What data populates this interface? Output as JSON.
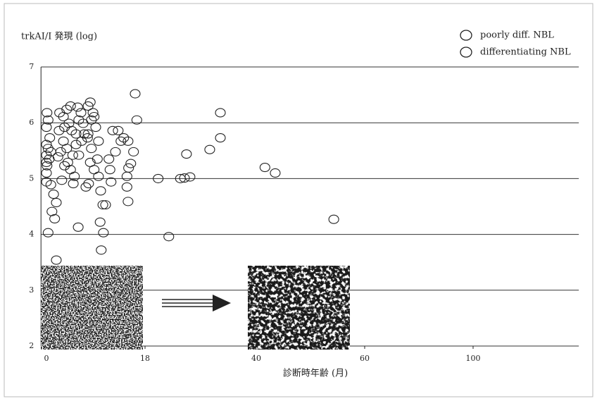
{
  "chart_data": {
    "type": "scatter",
    "y_label": "trkAI/I 発現 (log)",
    "x_label": "診断時年齢 (月)",
    "xlim": [
      -1,
      139
    ],
    "xticks": [
      0,
      18,
      40,
      60,
      100
    ],
    "ylim": [
      2,
      7
    ],
    "yticks": [
      2,
      3,
      4,
      5,
      6,
      7
    ],
    "grid": true,
    "legend": "top-right",
    "series": [
      {
        "name": "poorly  diff. NBL",
        "color": "#222",
        "x": [
          0.1,
          0.3,
          0,
          0.6,
          0,
          0.3,
          0.8,
          0,
          0.5,
          0,
          0.1,
          0,
          0,
          0.8,
          1.3,
          1.0,
          1.5,
          0.3,
          1.8,
          1.8,
          2.1,
          2.6,
          2.3,
          2.4,
          3.1,
          3.3,
          3.1,
          3.7,
          4.4,
          4.1,
          4.6,
          3.7,
          3.3,
          2.8,
          3.9,
          4.4,
          4.9,
          5.1,
          5.4,
          5.7,
          5.9,
          5.4,
          4.8,
          6.3,
          6.7,
          6.9,
          6.4,
          5.9,
          7.6,
          8.0,
          8.2,
          8.5,
          7.6,
          8.2,
          8.0,
          7.7,
          7.2,
          5.8,
          8.7,
          9.0,
          9.5,
          9.3,
          8.7,
          9.5,
          7.5,
          9.9,
          10.3,
          10.8,
          9.8,
          10.0,
          10.4,
          11.4,
          11.6,
          11.8,
          12.1,
          12.6,
          13.1,
          13.6,
          14.1,
          14.7,
          14.7,
          14.9,
          15.0,
          15.4,
          14.9,
          15.9,
          16.2,
          16.5,
          20.6,
          22.7,
          25.0,
          25.8,
          26.2,
          26.9,
          30.8,
          32.9,
          32.9,
          41.6,
          43.5,
          54.3
        ],
        "values": [
          6.18,
          6.05,
          5.92,
          5.73,
          5.61,
          5.54,
          5.48,
          5.42,
          5.35,
          5.29,
          5.23,
          5.1,
          4.94,
          4.89,
          4.72,
          4.41,
          4.28,
          4.03,
          4.57,
          3.54,
          5.39,
          5.48,
          5.86,
          6.18,
          6.11,
          5.92,
          5.67,
          6.24,
          6.3,
          5.99,
          5.86,
          5.54,
          5.23,
          4.97,
          5.29,
          5.16,
          4.91,
          5.04,
          5.8,
          6.28,
          6.05,
          5.61,
          5.42,
          6.18,
          5.99,
          5.8,
          5.67,
          5.42,
          6.3,
          6.37,
          6.05,
          6.18,
          5.8,
          5.54,
          5.29,
          4.91,
          4.85,
          4.13,
          6.11,
          5.92,
          5.67,
          5.35,
          5.16,
          5.04,
          5.73,
          4.78,
          4.53,
          4.53,
          4.22,
          3.72,
          4.03,
          5.35,
          5.16,
          4.94,
          5.86,
          5.48,
          5.86,
          5.67,
          5.73,
          5.04,
          4.85,
          4.59,
          5.19,
          5.27,
          5.67,
          5.48,
          6.52,
          6.05,
          5.0,
          3.96,
          5.0,
          5.01,
          5.44,
          5.03,
          5.52,
          6.18,
          5.73,
          5.2,
          5.1,
          4.27
        ]
      },
      {
        "name": "differentiating NBL",
        "color": "#222",
        "x": [],
        "values": []
      }
    ]
  }
}
